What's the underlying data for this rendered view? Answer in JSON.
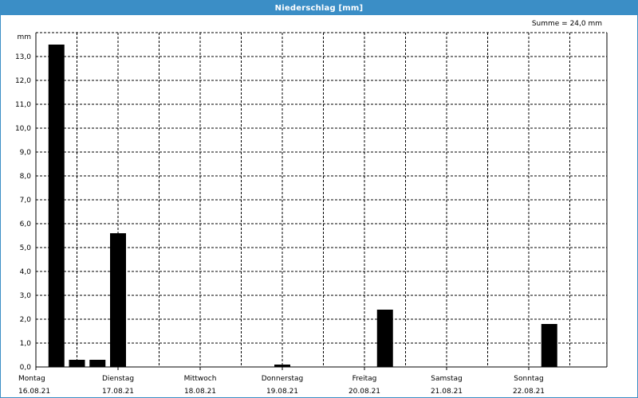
{
  "window": {
    "title": "Niederschlag [mm]"
  },
  "summary": "Summe = 24,0 mm",
  "chart_data": {
    "type": "bar",
    "title": "Niederschlag [mm]",
    "ylabel": "mm",
    "ylim": [
      0,
      14
    ],
    "yticks": [
      "0,0",
      "1,0",
      "2,0",
      "3,0",
      "4,0",
      "5,0",
      "6,0",
      "7,0",
      "8,0",
      "9,0",
      "10,0",
      "11,0",
      "12,0",
      "13,0"
    ],
    "grid": true,
    "x_days": [
      {
        "day": "Montag",
        "date": "16.08.21"
      },
      {
        "day": "Dienstag",
        "date": "17.08.21"
      },
      {
        "day": "Mittwoch",
        "date": "18.08.21"
      },
      {
        "day": "Donnerstag",
        "date": "19.08.21"
      },
      {
        "day": "Freitag",
        "date": "20.08.21"
      },
      {
        "day": "Samstag",
        "date": "21.08.21"
      },
      {
        "day": "Sonntag",
        "date": "22.08.21"
      }
    ],
    "bar_color": "#000000",
    "series": [
      {
        "values": [
          {
            "t": "2021-08-16 06:00",
            "value": 13.5
          },
          {
            "t": "2021-08-16 12:00",
            "value": 0.3
          },
          {
            "t": "2021-08-16 18:00",
            "value": 0.3
          },
          {
            "t": "2021-08-17 00:00",
            "value": 5.6
          },
          {
            "t": "2021-08-19 00:00",
            "value": 0.1
          },
          {
            "t": "2021-08-20 06:00",
            "value": 2.4
          },
          {
            "t": "2021-08-22 06:00",
            "value": 1.8
          }
        ]
      }
    ]
  }
}
